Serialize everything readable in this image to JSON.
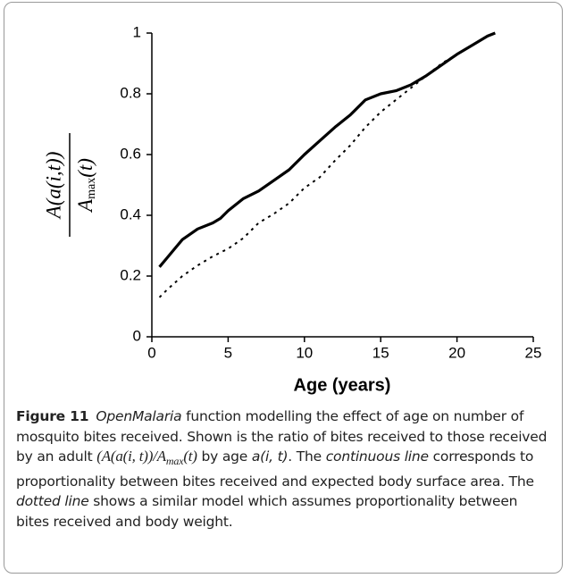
{
  "chart_data": {
    "type": "line",
    "xlabel": "Age (years)",
    "ylabel": {
      "numerator": "A(a(i,t))",
      "denominator": "A",
      "denominator_sub": "max",
      "denominator_tail": "(t)"
    },
    "xlim": [
      0,
      25
    ],
    "xticks": [
      0,
      5,
      10,
      15,
      20,
      25
    ],
    "ylim": [
      0,
      1
    ],
    "yticks": [
      0,
      0.2,
      0.4,
      0.6,
      0.8,
      1
    ],
    "grid": false,
    "series": [
      {
        "color": "#000000",
        "dashed": false,
        "x": [
          0.5,
          1,
          1.5,
          2,
          3,
          4,
          4.5,
          5,
          6,
          7,
          8,
          9,
          10,
          11,
          12,
          13,
          14,
          15,
          16,
          17,
          18,
          19,
          20,
          21,
          22,
          22.5
        ],
        "values": [
          0.23,
          0.26,
          0.29,
          0.32,
          0.355,
          0.375,
          0.39,
          0.415,
          0.455,
          0.48,
          0.515,
          0.55,
          0.6,
          0.645,
          0.69,
          0.73,
          0.78,
          0.8,
          0.81,
          0.83,
          0.86,
          0.895,
          0.93,
          0.96,
          0.99,
          1.0
        ]
      },
      {
        "color": "#000000",
        "dashed": true,
        "x": [
          0.5,
          1,
          2,
          3,
          4,
          5,
          6,
          7,
          8,
          9,
          10,
          11,
          12,
          13,
          14,
          15,
          16,
          17,
          18,
          19,
          20,
          21,
          22,
          22.5
        ],
        "values": [
          0.13,
          0.155,
          0.2,
          0.235,
          0.265,
          0.29,
          0.325,
          0.375,
          0.405,
          0.44,
          0.49,
          0.525,
          0.58,
          0.63,
          0.69,
          0.74,
          0.78,
          0.82,
          0.86,
          0.9,
          0.93,
          0.96,
          0.99,
          1.0
        ]
      }
    ]
  },
  "caption": [
    {
      "text": "Figure 11",
      "style": "bold"
    },
    {
      "text": "OpenMalaria",
      "style": "italic"
    },
    {
      "text": " function modelling the effect of age on number of mosquito bites received. Shown is the ratio of bites received to those received by an adult ",
      "style": "normal"
    },
    {
      "text": "(A(a(i, t))/A",
      "style": "math"
    },
    {
      "text": "max",
      "style": "sub"
    },
    {
      "text": "(t)",
      "style": "math"
    },
    {
      "text": " by age ",
      "style": "normal"
    },
    {
      "text": "a(i, t)",
      "style": "italic"
    },
    {
      "text": ". The ",
      "style": "normal"
    },
    {
      "text": "continuous line",
      "style": "italic"
    },
    {
      "text": " corresponds to proportionality between bites received and expected body surface area. The ",
      "style": "normal"
    },
    {
      "text": "dotted line",
      "style": "italic"
    },
    {
      "text": " shows a similar model which assumes proportionality between bites received and body weight.",
      "style": "normal"
    }
  ]
}
